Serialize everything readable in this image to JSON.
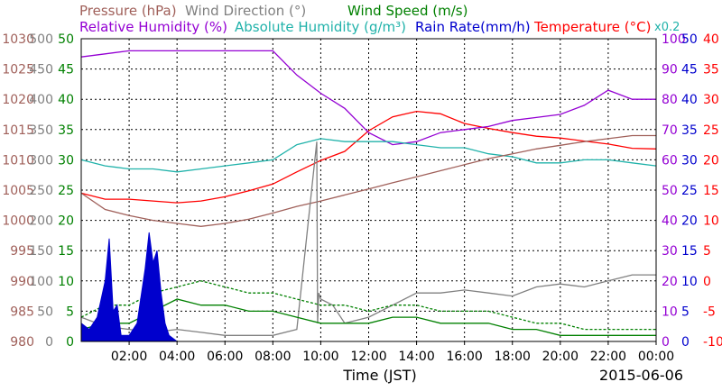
{
  "chart_data": {
    "type": "line",
    "date": "2015-06-06",
    "xlabel": "Time (JST)",
    "x_ticks": [
      "02:00",
      "04:00",
      "06:00",
      "08:00",
      "10:00",
      "12:00",
      "14:00",
      "16:00",
      "18:00",
      "20:00",
      "22:00",
      "00:00"
    ],
    "grid": true,
    "legend": [
      {
        "label": "Pressure (hPa)",
        "color": "#a0605a"
      },
      {
        "label": "Wind Direction (°)",
        "color": "#808080"
      },
      {
        "label": "Wind Speed (m/s)",
        "color": "#008000"
      },
      {
        "label": "Relative Humidity (%)",
        "color": "#9400d3"
      },
      {
        "label": "Absolute Humidity (g/m³) x0.2",
        "color": "#20b2aa"
      },
      {
        "label": "Rain Rate(mm/h)",
        "color": "#0000cd"
      },
      {
        "label": "Temperature (°C)",
        "color": "#ff0000"
      }
    ],
    "legend_rows": [
      [
        {
          "label": "Pressure (hPa)",
          "color": "#a0605a"
        },
        {
          "label": "Wind Direction (°)",
          "color": "#808080"
        },
        {
          "label": "Wind Speed (m/s)",
          "color": "#008000"
        }
      ],
      [
        {
          "label": "Relative Humidity (%)",
          "color": "#9400d3"
        },
        {
          "label": "Absolute Humidity (g/m³)",
          "color": "#20b2aa"
        },
        {
          "label": "Rain Rate(mm/h)",
          "color": "#0000cd"
        },
        {
          "label": "Temperature (°C)",
          "color": "#ff0000"
        }
      ]
    ],
    "abs_humidity_scale_note": "x0.2",
    "axes": {
      "pressure": {
        "ylim": [
          980,
          1030
        ],
        "ticks": [
          980,
          985,
          990,
          995,
          1000,
          1005,
          1010,
          1015,
          1020,
          1025,
          1030
        ],
        "color": "#a0605a"
      },
      "wind_direction": {
        "ylim": [
          0,
          500
        ],
        "ticks": [
          0,
          50,
          100,
          150,
          200,
          250,
          300,
          350,
          400,
          450,
          500
        ],
        "color": "#808080"
      },
      "wind_speed": {
        "ylim": [
          0,
          50
        ],
        "ticks": [
          0,
          5,
          10,
          15,
          20,
          25,
          30,
          35,
          40,
          45,
          50
        ],
        "color": "#008000"
      },
      "relative_humidity": {
        "ylim": [
          0,
          100
        ],
        "ticks": [
          0,
          10,
          20,
          30,
          40,
          50,
          60,
          70,
          80,
          90,
          100
        ],
        "color": "#9400d3"
      },
      "rain_rate": {
        "ylim": [
          0,
          50
        ],
        "ticks": [
          0,
          5,
          10,
          15,
          20,
          25,
          30,
          35,
          40,
          45,
          50
        ],
        "color": "#0000cd"
      },
      "temperature": {
        "ylim": [
          -10,
          40
        ],
        "ticks": [
          -10,
          -5,
          0,
          5,
          10,
          15,
          20,
          25,
          30,
          35,
          40
        ],
        "color": "#ff0000"
      }
    },
    "series": [
      {
        "name": "Temperature (°C)",
        "axis": "temperature",
        "color": "#ff0000",
        "x": [
          "00:00",
          "01:00",
          "02:00",
          "03:00",
          "04:00",
          "05:00",
          "06:00",
          "07:00",
          "08:00",
          "09:00",
          "10:00",
          "11:00",
          "12:00",
          "13:00",
          "14:00",
          "15:00",
          "16:00",
          "17:00",
          "18:00",
          "19:00",
          "20:00",
          "21:00",
          "22:00",
          "23:00",
          "24:00"
        ],
        "values": [
          14.5,
          13.5,
          13.5,
          13.2,
          12.9,
          13.2,
          13.9,
          14.9,
          16.0,
          18.0,
          19.9,
          21.4,
          24.8,
          27.1,
          28.0,
          27.6,
          26.0,
          25.2,
          24.5,
          23.9,
          23.6,
          23.1,
          22.6,
          21.9,
          21.8
        ]
      },
      {
        "name": "Relative Humidity (%)",
        "axis": "relative_humidity",
        "color": "#9400d3",
        "x": [
          "00:00",
          "01:00",
          "02:00",
          "03:00",
          "04:00",
          "05:00",
          "06:00",
          "07:00",
          "08:00",
          "09:00",
          "10:00",
          "11:00",
          "12:00",
          "13:00",
          "14:00",
          "15:00",
          "16:00",
          "17:00",
          "18:00",
          "19:00",
          "20:00",
          "21:00",
          "22:00",
          "23:00",
          "24:00"
        ],
        "values": [
          94,
          95,
          96,
          96,
          96,
          96,
          96,
          96,
          96,
          88,
          82,
          77,
          69,
          65,
          66,
          69,
          70,
          71,
          73,
          74,
          75,
          78,
          83,
          80,
          80
        ]
      },
      {
        "name": "Absolute Humidity (g/m³)",
        "axis": "relative_humidity",
        "color": "#20b2aa",
        "x": [
          "00:00",
          "01:00",
          "02:00",
          "03:00",
          "04:00",
          "05:00",
          "06:00",
          "07:00",
          "08:00",
          "09:00",
          "10:00",
          "11:00",
          "12:00",
          "13:00",
          "14:00",
          "15:00",
          "16:00",
          "17:00",
          "18:00",
          "19:00",
          "20:00",
          "21:00",
          "22:00",
          "23:00",
          "24:00"
        ],
        "values": [
          60,
          58,
          57,
          57,
          56,
          57,
          58,
          59,
          60,
          65,
          67,
          66,
          66,
          66,
          65,
          64,
          64,
          62,
          61,
          59,
          59,
          60,
          60,
          59,
          58
        ]
      },
      {
        "name": "Pressure (hPa)",
        "axis": "pressure",
        "color": "#a0605a",
        "x": [
          "00:00",
          "01:00",
          "02:00",
          "03:00",
          "04:00",
          "05:00",
          "06:00",
          "07:00",
          "08:00",
          "09:00",
          "10:00",
          "11:00",
          "12:00",
          "13:00",
          "14:00",
          "15:00",
          "16:00",
          "17:00",
          "18:00",
          "19:00",
          "20:00",
          "21:00",
          "22:00",
          "23:00",
          "24:00"
        ],
        "values": [
          1004.5,
          1001.8,
          1000.8,
          1000.0,
          999.5,
          999.0,
          999.5,
          1000.2,
          1001.2,
          1002.3,
          1003.2,
          1004.2,
          1005.2,
          1006.2,
          1007.2,
          1008.2,
          1009.2,
          1010.2,
          1011.0,
          1011.8,
          1012.4,
          1013.0,
          1013.5,
          1014.0,
          1014.0
        ]
      },
      {
        "name": "Wind Direction (°)",
        "axis": "wind_direction",
        "color": "#808080",
        "x": [
          "00:00",
          "01:00",
          "02:00",
          "03:00",
          "04:00",
          "05:00",
          "06:00",
          "07:00",
          "08:00",
          "09:00",
          "09:50",
          "09:52",
          "09:55",
          "10:00",
          "10:30",
          "11:00",
          "12:00",
          "13:00",
          "14:00",
          "15:00",
          "16:00",
          "17:00",
          "18:00",
          "19:00",
          "20:00",
          "21:00",
          "22:00",
          "23:00",
          "24:00"
        ],
        "values": [
          40,
          25,
          20,
          15,
          20,
          15,
          10,
          10,
          10,
          20,
          330,
          30,
          80,
          70,
          60,
          30,
          40,
          60,
          80,
          80,
          85,
          80,
          75,
          90,
          95,
          90,
          100,
          110,
          110
        ]
      },
      {
        "name": "Wind Speed (m/s)",
        "axis": "wind_speed",
        "color": "#008000",
        "x": [
          "00:00",
          "01:00",
          "02:00",
          "03:00",
          "04:00",
          "05:00",
          "06:00",
          "07:00",
          "08:00",
          "09:00",
          "10:00",
          "11:00",
          "12:00",
          "13:00",
          "14:00",
          "15:00",
          "16:00",
          "17:00",
          "18:00",
          "19:00",
          "20:00",
          "21:00",
          "22:00",
          "23:00",
          "24:00"
        ],
        "values": [
          2,
          3,
          3,
          5,
          7,
          6,
          6,
          5,
          5,
          4,
          3,
          3,
          3,
          4,
          4,
          3,
          3,
          3,
          2,
          2,
          1,
          1,
          1,
          1,
          1
        ]
      },
      {
        "name": "Wind Speed (m/s) gust",
        "axis": "wind_speed",
        "color": "#008000",
        "dashed": true,
        "x": [
          "00:00",
          "01:00",
          "02:00",
          "03:00",
          "04:00",
          "05:00",
          "06:00",
          "07:00",
          "08:00",
          "09:00",
          "10:00",
          "11:00",
          "12:00",
          "13:00",
          "14:00",
          "15:00",
          "16:00",
          "17:00",
          "18:00",
          "19:00",
          "20:00",
          "21:00",
          "22:00",
          "23:00",
          "24:00"
        ],
        "values": [
          4,
          6,
          6,
          8,
          9,
          10,
          9,
          8,
          8,
          7,
          6,
          6,
          5,
          6,
          6,
          5,
          5,
          5,
          4,
          3,
          3,
          2,
          2,
          2,
          2
        ]
      },
      {
        "name": "Rain Rate(mm/h)",
        "axis": "rain_rate",
        "color": "#0000cd",
        "fill": true,
        "x": [
          "00:00",
          "00:20",
          "00:40",
          "01:00",
          "01:10",
          "01:20",
          "01:30",
          "01:40",
          "02:00",
          "02:20",
          "02:40",
          "02:50",
          "03:00",
          "03:10",
          "03:20",
          "03:30",
          "03:40",
          "04:00",
          "04:30",
          "08:00",
          "12:00",
          "18:00",
          "24:00"
        ],
        "values": [
          3,
          2,
          4,
          10,
          17,
          5,
          6,
          1,
          1,
          3,
          12,
          18,
          13,
          15,
          8,
          3,
          1,
          0,
          0,
          0,
          0,
          0,
          0
        ]
      }
    ]
  }
}
